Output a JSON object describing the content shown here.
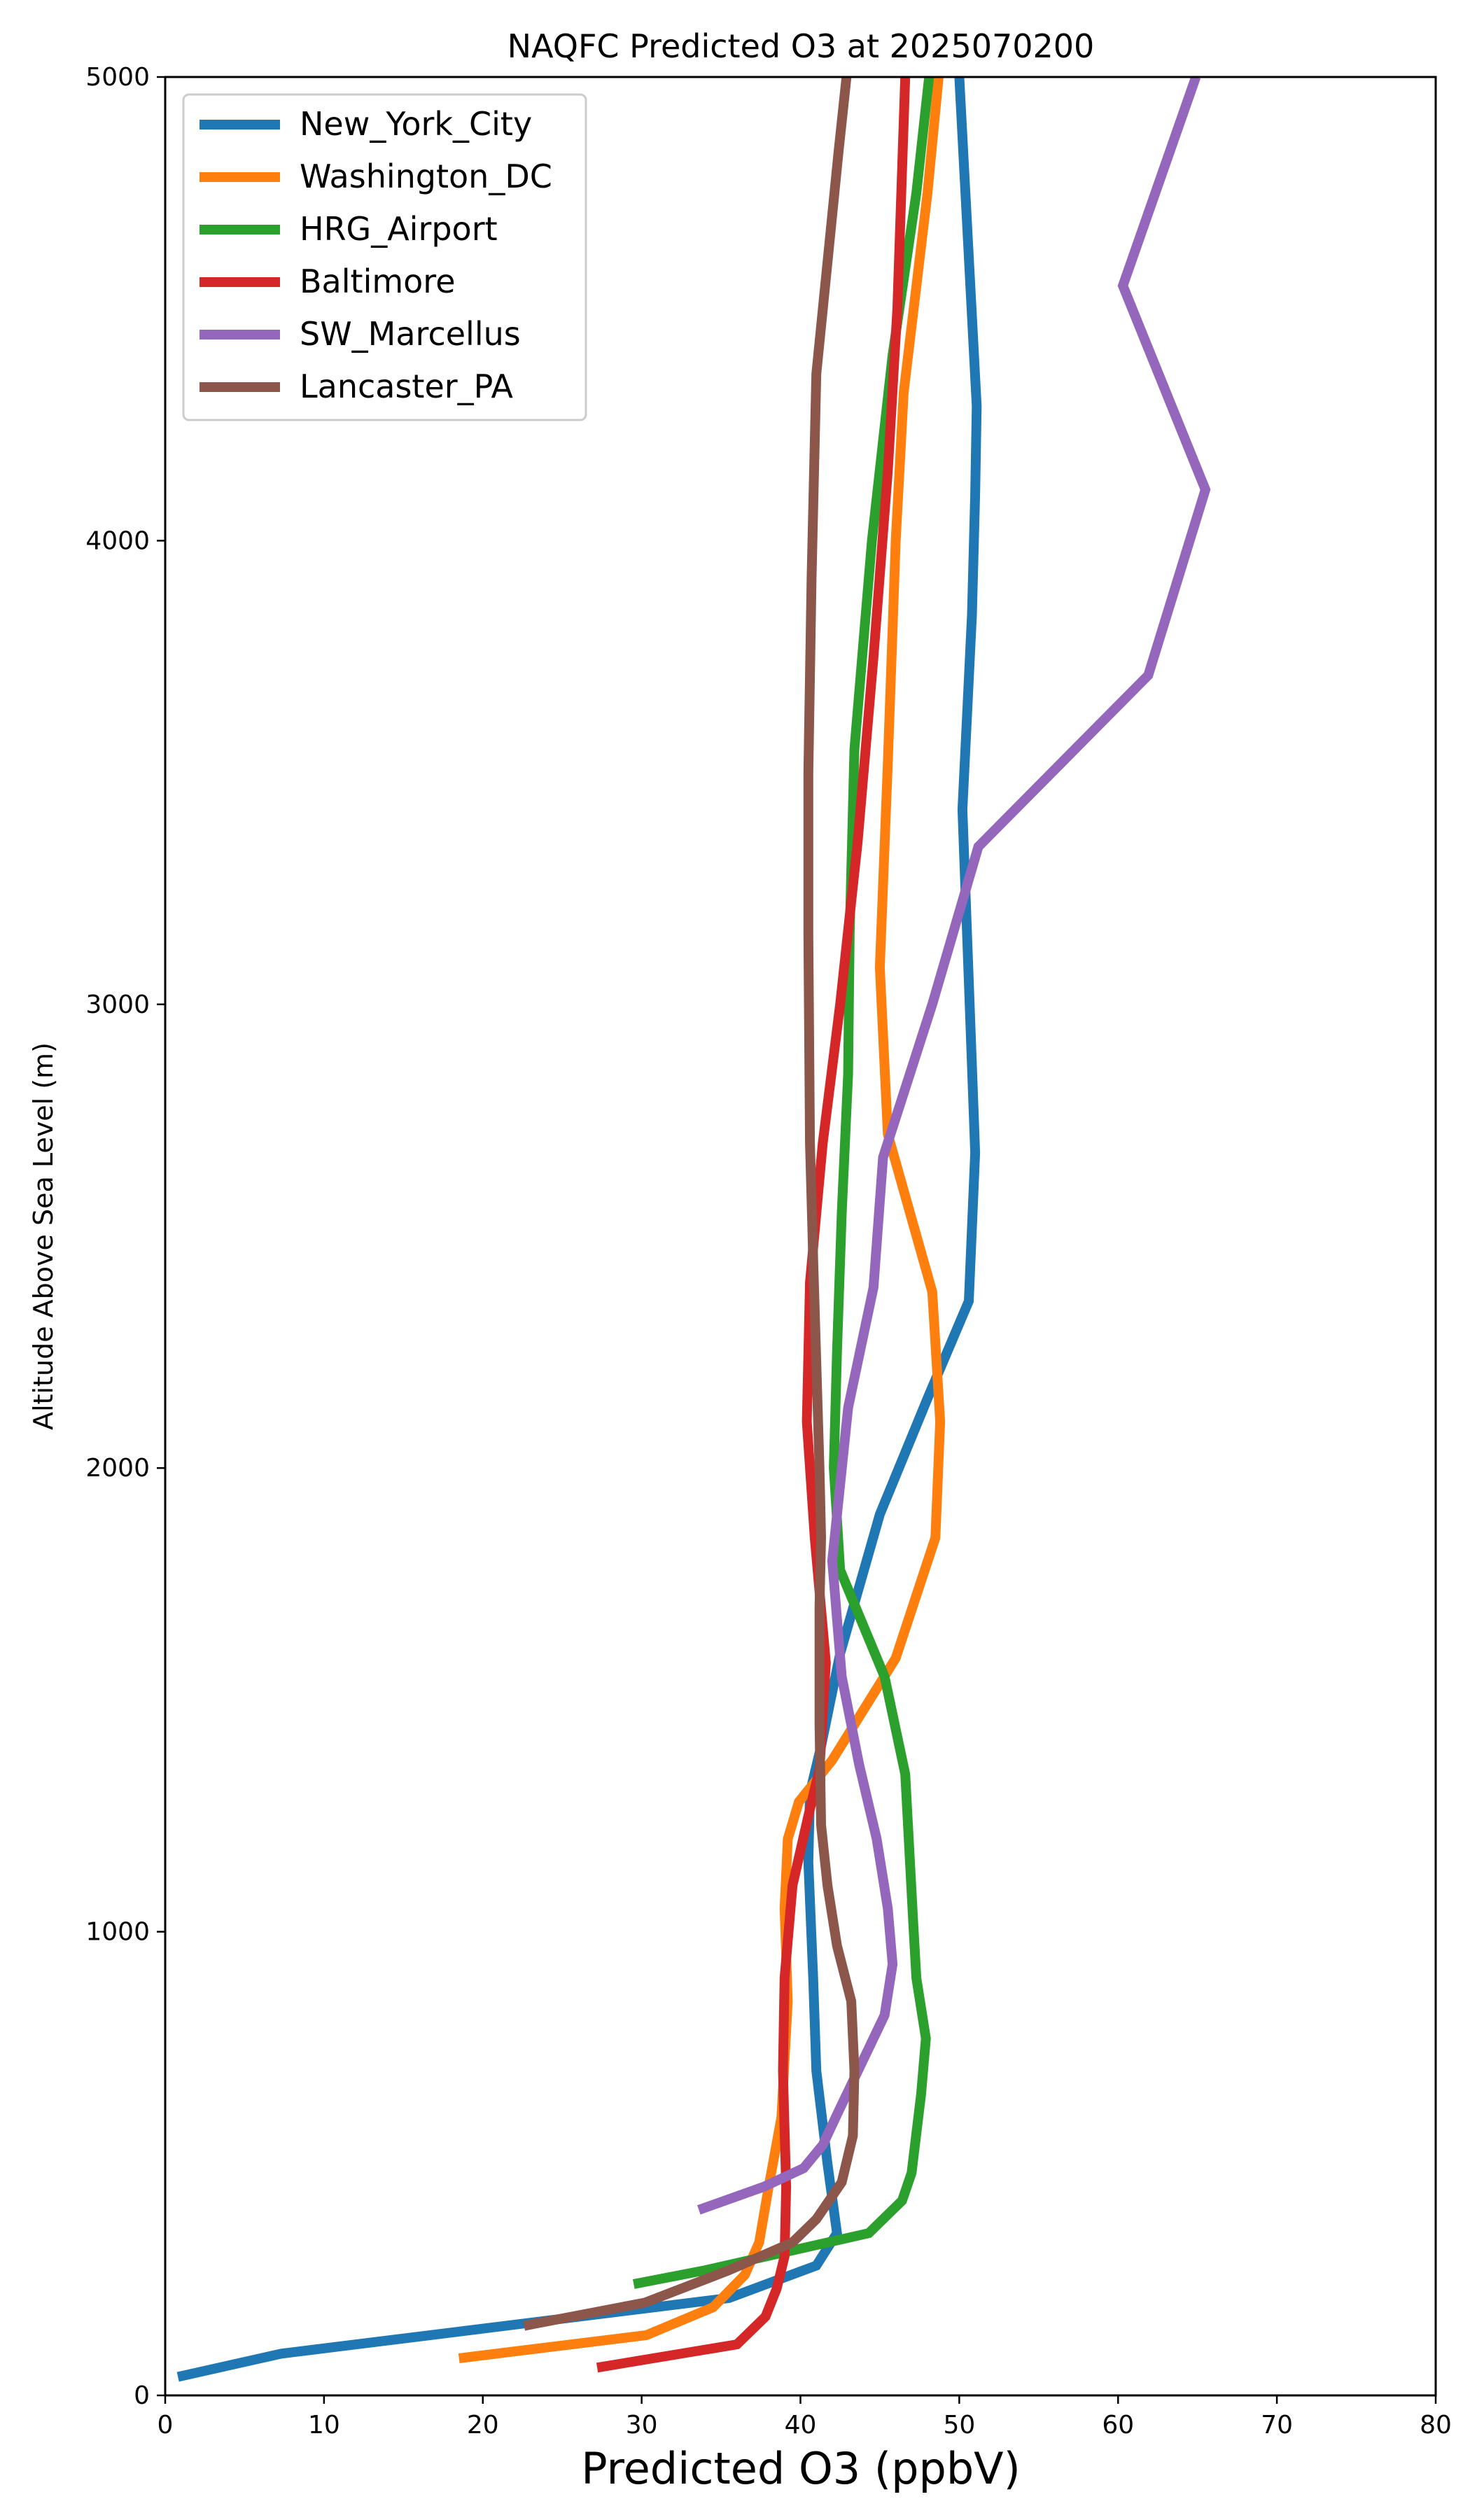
{
  "chart_data": {
    "type": "line",
    "title": "NAQFC Predicted O3 at 2025070200",
    "xlabel": "Predicted O3 (ppbV)",
    "ylabel": "Altitude Above Sea Level (m)",
    "xlim": [
      0,
      80
    ],
    "ylim": [
      0,
      5000
    ],
    "xticks": [
      0,
      10,
      20,
      30,
      40,
      50,
      60,
      70,
      80
    ],
    "yticks": [
      0,
      1000,
      2000,
      3000,
      4000,
      5000
    ],
    "grid": false,
    "legend_position": "top-left",
    "series": [
      {
        "name": "New_York_City",
        "color": "#1f77b4",
        "x": [
          0.8,
          7.3,
          35.5,
          41.0,
          42.3,
          41.7,
          41.0,
          40.8,
          40.5,
          40.6,
          41.3,
          42.5,
          45.0,
          48.0,
          50.6,
          51.0,
          50.6,
          50.2,
          50.8,
          51.0,
          51.1,
          50.0
        ],
        "y": [
          40,
          90,
          210,
          280,
          350,
          500,
          700,
          900,
          1150,
          1300,
          1400,
          1600,
          1900,
          2150,
          2360,
          2680,
          3050,
          3420,
          3840,
          4100,
          4290,
          5000
        ]
      },
      {
        "name": "Washington_DC",
        "color": "#ff7f0e",
        "x": [
          18.5,
          30.3,
          34.5,
          36.5,
          37.4,
          38.0,
          38.8,
          39.2,
          39.0,
          39.2,
          39.9,
          42.0,
          46.0,
          48.5,
          48.8,
          48.3,
          45.5,
          45.0,
          45.5,
          46.0,
          46.5,
          48.0,
          48.7
        ],
        "y": [
          80,
          130,
          190,
          260,
          330,
          450,
          600,
          850,
          1050,
          1200,
          1280,
          1370,
          1590,
          1850,
          2100,
          2380,
          2720,
          3080,
          3520,
          4000,
          4320,
          4750,
          5000
        ]
      },
      {
        "name": "HRG_Airport",
        "color": "#2ca02c",
        "x": [
          29.5,
          34.0,
          44.3,
          46.4,
          47.0,
          47.6,
          47.9,
          47.3,
          47.1,
          46.6,
          45.3,
          42.5,
          42.1,
          42.3,
          42.6,
          43.0,
          43.1,
          43.4,
          44.5,
          45.8,
          47.3,
          48.1
        ],
        "y": [
          240,
          270,
          350,
          420,
          480,
          650,
          770,
          900,
          1020,
          1340,
          1550,
          1780,
          2000,
          2250,
          2550,
          2850,
          3150,
          3550,
          4000,
          4400,
          4750,
          5000
        ]
      },
      {
        "name": "Baltimore",
        "color": "#d62728",
        "x": [
          27.2,
          36.0,
          37.8,
          38.5,
          39.0,
          39.1,
          38.9,
          39.0,
          39.5,
          40.5,
          41.2,
          41.6,
          40.9,
          40.4,
          40.6,
          41.4,
          42.5,
          43.6,
          44.6,
          45.5,
          46.1,
          46.6
        ],
        "y": [
          60,
          110,
          170,
          230,
          300,
          450,
          700,
          900,
          1100,
          1250,
          1350,
          1580,
          1850,
          2100,
          2400,
          2700,
          3000,
          3350,
          3750,
          4150,
          4500,
          5000
        ]
      },
      {
        "name": "SW_Marcellus",
        "color": "#9467bd",
        "x": [
          33.6,
          37.7,
          40.2,
          41.4,
          42.5,
          43.9,
          45.3,
          45.8,
          45.5,
          44.8,
          43.7,
          42.6,
          42.0,
          43.0,
          44.6,
          45.2,
          48.3,
          51.2,
          61.9,
          65.5,
          60.3,
          64.9
        ],
        "y": [
          400,
          450,
          490,
          540,
          620,
          720,
          820,
          930,
          1050,
          1200,
          1360,
          1550,
          1800,
          2130,
          2390,
          2670,
          3000,
          3340,
          3710,
          4110,
          4550,
          5000
        ]
      },
      {
        "name": "Lancaster_PA",
        "color": "#8c564b",
        "x": [
          22.6,
          30.2,
          35.5,
          39.5,
          41.0,
          42.6,
          43.3,
          43.4,
          43.2,
          42.3,
          41.7,
          41.3,
          41.2,
          41.2,
          41.3,
          41.2,
          40.8,
          40.6,
          40.5,
          40.5,
          40.7,
          41.0,
          42.4,
          42.9
        ],
        "y": [
          150,
          200,
          270,
          330,
          380,
          460,
          560,
          700,
          850,
          970,
          1100,
          1230,
          1450,
          1700,
          1850,
          2000,
          2450,
          2700,
          3150,
          3500,
          3920,
          4360,
          4840,
          5000
        ]
      }
    ]
  }
}
